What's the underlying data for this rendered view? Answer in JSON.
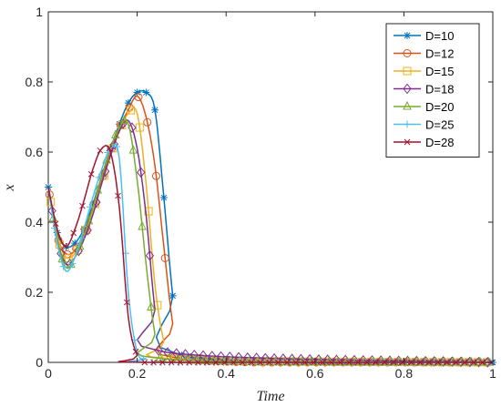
{
  "chart_data": {
    "type": "line",
    "title": "",
    "xlabel": "Time",
    "ylabel": "x",
    "xlim": [
      0,
      1
    ],
    "ylim": [
      0,
      1
    ],
    "x_ticks": [
      "0",
      "0.2",
      "0.4",
      "0.6",
      "0.8",
      "1"
    ],
    "y_ticks": [
      "0",
      "0.2",
      "0.4",
      "0.6",
      "0.8",
      "1"
    ],
    "legend_position": "top-right",
    "grid": false,
    "series": [
      {
        "name": "D=10",
        "color": "#0072BD",
        "marker": "asterisk",
        "x": [
          0,
          0.02,
          0.04,
          0.06,
          0.08,
          0.1,
          0.12,
          0.14,
          0.16,
          0.18,
          0.2,
          0.22,
          0.24,
          0.26,
          0.28,
          0.3,
          1.0
        ],
        "y": [
          0.5,
          0.37,
          0.33,
          0.34,
          0.38,
          0.45,
          0.53,
          0.61,
          0.68,
          0.74,
          0.77,
          0.77,
          0.72,
          0.47,
          0.19,
          0.02,
          0.0
        ]
      },
      {
        "name": "D=12",
        "color": "#D95319",
        "marker": "circle",
        "x": [
          0,
          0.02,
          0.04,
          0.06,
          0.08,
          0.1,
          0.12,
          0.14,
          0.16,
          0.18,
          0.2,
          0.22,
          0.24,
          0.26,
          0.28,
          0.3,
          1.0
        ],
        "y": [
          0.5,
          0.36,
          0.31,
          0.32,
          0.37,
          0.44,
          0.52,
          0.6,
          0.67,
          0.72,
          0.76,
          0.7,
          0.56,
          0.33,
          0.11,
          0.01,
          0.0
        ]
      },
      {
        "name": "D=15",
        "color": "#EDB120",
        "marker": "square",
        "x": [
          0,
          0.02,
          0.04,
          0.06,
          0.08,
          0.1,
          0.12,
          0.14,
          0.16,
          0.18,
          0.2,
          0.22,
          0.24,
          0.26,
          0.28,
          1.0
        ],
        "y": [
          0.5,
          0.36,
          0.3,
          0.31,
          0.36,
          0.43,
          0.51,
          0.59,
          0.66,
          0.71,
          0.71,
          0.51,
          0.22,
          0.06,
          0.01,
          0.0
        ]
      },
      {
        "name": "D=18",
        "color": "#7E2F8E",
        "marker": "diamond",
        "x": [
          0,
          0.02,
          0.04,
          0.06,
          0.08,
          0.1,
          0.12,
          0.14,
          0.16,
          0.18,
          0.2,
          0.22,
          0.24,
          0.26,
          1.0
        ],
        "y": [
          0.5,
          0.35,
          0.28,
          0.3,
          0.35,
          0.42,
          0.51,
          0.59,
          0.66,
          0.69,
          0.61,
          0.42,
          0.15,
          0.03,
          0.0
        ]
      },
      {
        "name": "D=20",
        "color": "#77AC30",
        "marker": "triangle",
        "x": [
          0,
          0.02,
          0.04,
          0.06,
          0.08,
          0.1,
          0.12,
          0.14,
          0.16,
          0.18,
          0.2,
          0.22,
          0.24,
          0.26,
          1.0
        ],
        "y": [
          0.5,
          0.35,
          0.27,
          0.3,
          0.36,
          0.44,
          0.53,
          0.61,
          0.67,
          0.68,
          0.52,
          0.28,
          0.08,
          0.01,
          0.0
        ]
      },
      {
        "name": "D=25",
        "color": "#4DBEEE",
        "marker": "plus",
        "x": [
          0,
          0.02,
          0.04,
          0.06,
          0.08,
          0.1,
          0.12,
          0.14,
          0.16,
          0.18,
          0.2,
          0.22,
          0.24,
          1.0
        ],
        "y": [
          0.5,
          0.34,
          0.26,
          0.3,
          0.38,
          0.47,
          0.55,
          0.61,
          0.58,
          0.2,
          0.03,
          0.01,
          0.0,
          0.0
        ]
      },
      {
        "name": "D=28",
        "color": "#A2142F",
        "marker": "x",
        "x": [
          0,
          0.02,
          0.04,
          0.06,
          0.08,
          0.1,
          0.12,
          0.14,
          0.16,
          0.18,
          0.2,
          0.22,
          1.0
        ],
        "y": [
          0.5,
          0.38,
          0.33,
          0.38,
          0.46,
          0.55,
          0.61,
          0.6,
          0.44,
          0.13,
          0.02,
          0.0,
          0.0
        ]
      }
    ]
  }
}
